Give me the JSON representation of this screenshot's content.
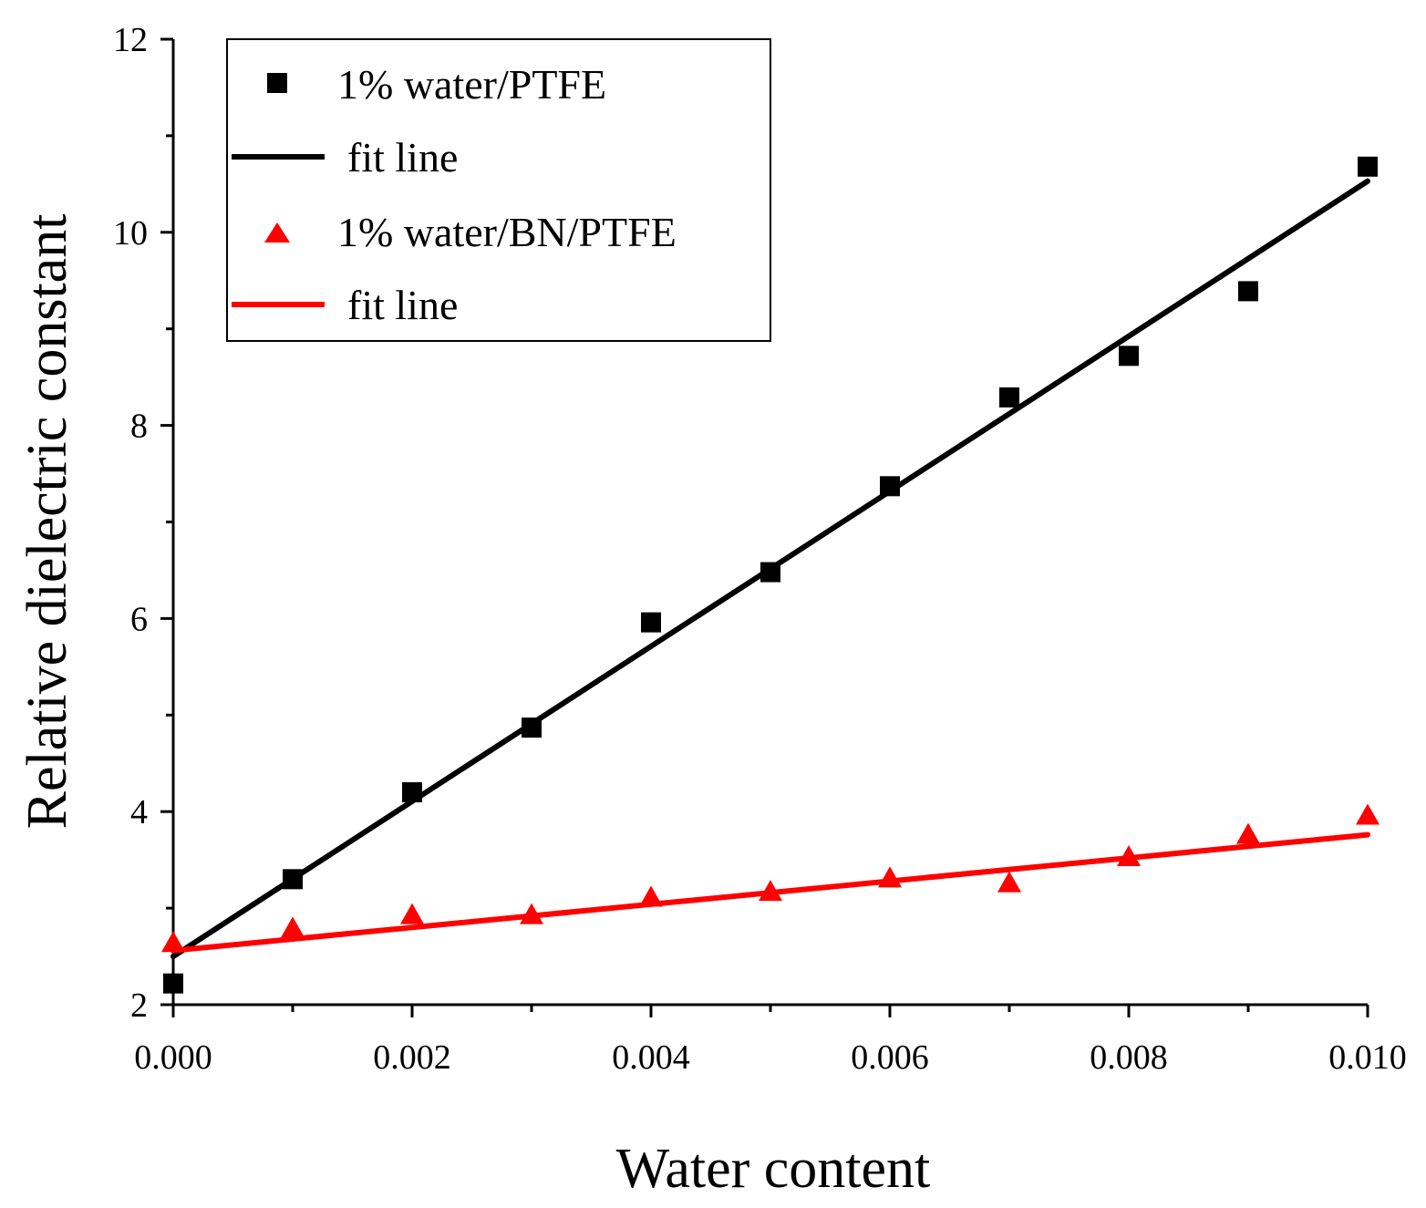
{
  "chart_data": {
    "type": "scatter",
    "xlabel": "Water content",
    "ylabel": "Relative dielectric constant",
    "xlim": [
      0.0,
      0.01
    ],
    "ylim": [
      2,
      12
    ],
    "x_ticks": [
      "0.000",
      "0.002",
      "0.004",
      "0.006",
      "0.008",
      "0.010"
    ],
    "y_ticks": [
      "2",
      "4",
      "6",
      "8",
      "10",
      "12"
    ],
    "grid": false,
    "legend_position": "top-left",
    "x": [
      0.0,
      0.001,
      0.002,
      0.003,
      0.004,
      0.005,
      0.006,
      0.007,
      0.008,
      0.009,
      0.01
    ],
    "series": [
      {
        "name": "1% water/PTFE",
        "marker": "square",
        "color": "#000000",
        "values": [
          2.22,
          3.3,
          4.2,
          4.87,
          5.96,
          6.48,
          7.37,
          8.29,
          8.72,
          9.39,
          10.68
        ]
      },
      {
        "name": "fit line",
        "type": "line",
        "color": "#000000",
        "x": [
          0.0,
          0.01
        ],
        "values": [
          2.5,
          10.53
        ]
      },
      {
        "name": "1% water/BN/PTFE",
        "marker": "triangle",
        "color": "#ff0000",
        "values": [
          2.63,
          2.78,
          2.92,
          2.92,
          3.1,
          3.16,
          3.3,
          3.25,
          3.52,
          3.75,
          3.95
        ]
      },
      {
        "name": "fit line",
        "type": "line",
        "color": "#ff0000",
        "x": [
          0.0,
          0.01
        ],
        "values": [
          2.56,
          3.76
        ]
      }
    ]
  }
}
